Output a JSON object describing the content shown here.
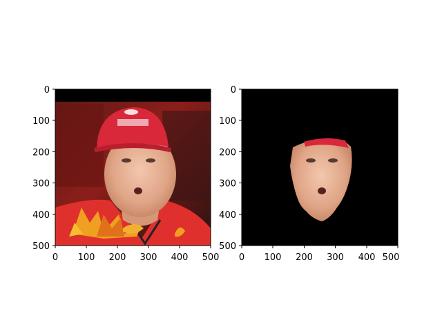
{
  "chart_data": [
    {
      "type": "image",
      "content": "face photo: person wearing a red cap, red shirt, orange autumn leaves overlay at bottom-left",
      "xlim": [
        0,
        500
      ],
      "ylim": [
        500,
        0
      ],
      "xticks": [
        "0",
        "100",
        "200",
        "300",
        "400",
        "500"
      ],
      "yticks": [
        "0",
        "100",
        "200",
        "300",
        "400",
        "500"
      ],
      "title": "",
      "xlabel": "",
      "ylabel": ""
    },
    {
      "type": "image",
      "content": "segmented face mask: same face isolated on black background",
      "xlim": [
        0,
        500
      ],
      "ylim": [
        500,
        0
      ],
      "xticks": [
        "0",
        "100",
        "200",
        "300",
        "400",
        "500"
      ],
      "yticks": [
        "0",
        "100",
        "200",
        "300",
        "400",
        "500"
      ],
      "title": "",
      "xlabel": "",
      "ylabel": ""
    }
  ],
  "colors": {
    "cap_red": "#d8283a",
    "shirt_red": "#e0302e",
    "skin": "#e8b49a",
    "leaf_orange": "#f0a020",
    "background_dark": "#2a1210",
    "mask_black": "#000000"
  }
}
